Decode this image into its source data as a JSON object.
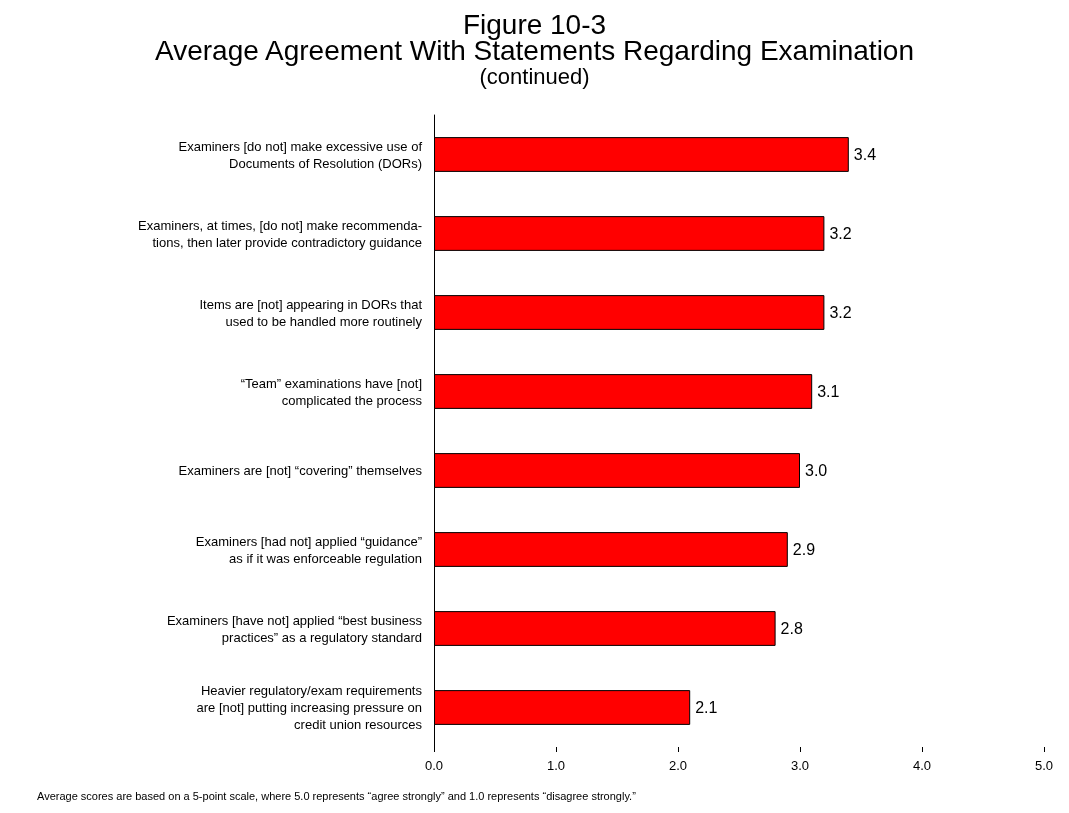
{
  "chart_data": {
    "type": "bar",
    "orientation": "horizontal",
    "title": "Figure 10-3\nAverage Agreement With Statements Regarding Examination",
    "subtitle": "(continued)",
    "categories": [
      "Examiners [do not] make excessive use of\nDocuments of Resolution (DORs)",
      "Examiners, at times, [do not] make recommenda-\ntions, then later provide contradictory guidance",
      "Items are [not] appearing in DORs that\nused to be handled more routinely",
      "“Team” examinations have [not]\ncomplicated the process",
      "Examiners are [not] “covering” themselves",
      "Examiners [had not] applied “guidance”\nas if it was enforceable regulation",
      "Examiners [have not] applied “best business\npractices” as a regulatory standard",
      "Heavier regulatory/exam requirements\nare [not] putting increasing pressure on\ncredit union resources"
    ],
    "values": [
      3.4,
      3.2,
      3.2,
      3.1,
      3.0,
      2.9,
      2.8,
      2.1
    ],
    "value_labels": [
      "3.4",
      "3.2",
      "3.2",
      "3.1",
      "3.0",
      "2.9",
      "2.8",
      "2.1"
    ],
    "color": "#ff0000",
    "xlim": [
      0,
      5
    ],
    "xticks": [
      {
        "value": 0,
        "label": "0.0"
      },
      {
        "value": 1,
        "label": "1.0"
      },
      {
        "value": 2,
        "label": "2.0"
      },
      {
        "value": 3,
        "label": "3.0"
      },
      {
        "value": 4,
        "label": "4.0"
      },
      {
        "value": 5,
        "label": "5.0"
      }
    ],
    "grid": false,
    "annotations": [
      "Average scores are based on a 5-point scale, where 5.0 represents “agree strongly” and 1.0 represents “disagree strongly.”"
    ]
  }
}
